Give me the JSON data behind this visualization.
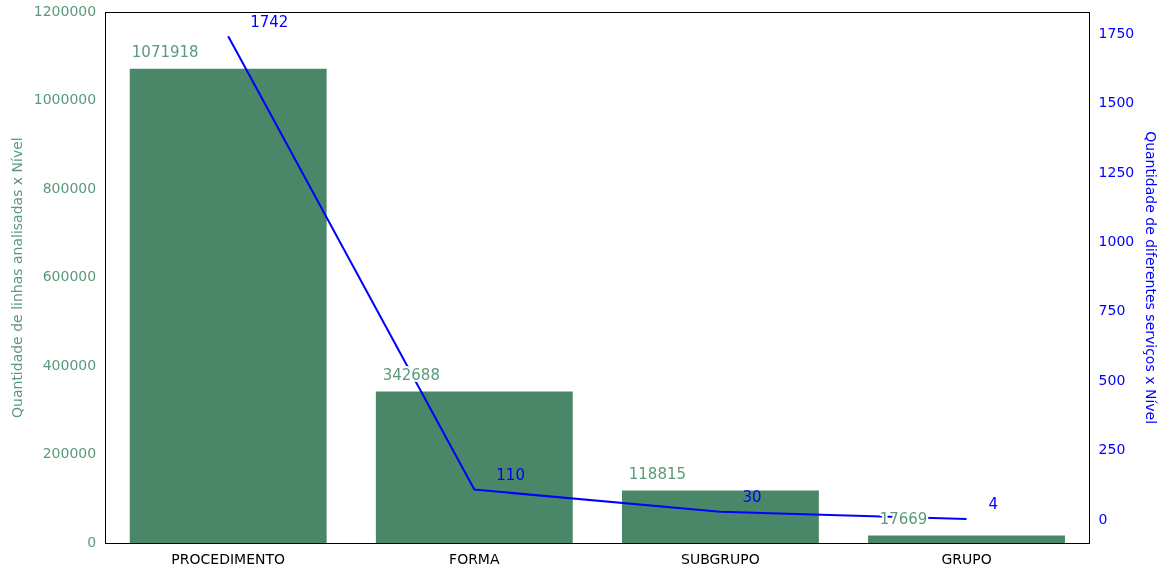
{
  "chart_data": {
    "type": "bar",
    "categories": [
      "PROCEDIMENTO",
      "FORMA",
      "SUBGRUPO",
      "GRUPO"
    ],
    "ylabel": "Quantidade de linhas analisadas x Nível",
    "y2label": "Quantidade de diferentes serviços x Nível",
    "series": [
      {
        "color": "#4a8769",
        "values": [
          1071918,
          342688,
          118815,
          17669
        ]
      },
      {
        "type": "line",
        "axis": "y2",
        "color": "#0000ff",
        "values": [
          1742,
          110,
          30,
          4
        ]
      }
    ],
    "ylim": [
      0,
      1200000
    ],
    "yticks": [
      0,
      200000,
      400000,
      600000,
      800000,
      1000000,
      1200000
    ],
    "y2lim": [
      -83,
      1829
    ],
    "y2ticks": [
      0,
      250,
      500,
      750,
      1000,
      1250,
      1500,
      1750
    ],
    "data_labels": true,
    "grid": false,
    "legend": false,
    "marker": "none",
    "line_style": "solid"
  }
}
